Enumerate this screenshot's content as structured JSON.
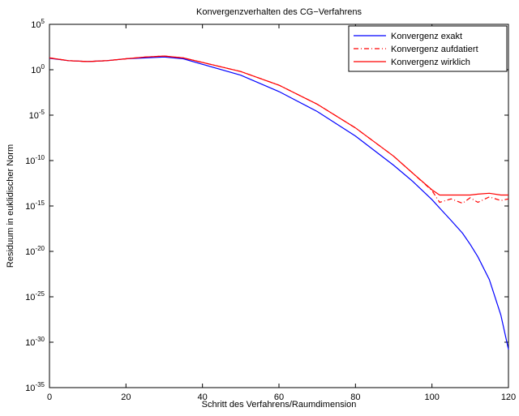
{
  "chart_data": {
    "type": "line",
    "title": "Konvergenzverhalten des CG−Verfahrens",
    "xlabel": "Schritt des Verfahrens/Raumdimension",
    "ylabel": "Residuum in euklidischer Norm",
    "x": [
      0,
      5,
      10,
      15,
      20,
      25,
      30,
      35,
      40,
      50,
      60,
      70,
      80,
      90,
      95,
      100,
      102,
      105,
      108,
      110,
      112,
      115,
      118,
      120
    ],
    "series": [
      {
        "name": "Konvergenz exakt",
        "color": "#0000ff",
        "style": "solid",
        "values": [
          18,
          10,
          7.9,
          10,
          16,
          20,
          25,
          16,
          4,
          0.25,
          0.004,
          2.5e-05,
          5e-08,
          3e-11,
          5e-13,
          5e-15,
          6e-16,
          2.5e-17,
          1e-18,
          6e-20,
          2.5e-21,
          8e-24,
          1e-27,
          1.6e-31
        ]
      },
      {
        "name": "Konvergenz aufdatiert",
        "color": "#ff0000",
        "style": "dashdot",
        "values": [
          20,
          10,
          7.9,
          10,
          16,
          25,
          32,
          20,
          6.3,
          0.63,
          0.02,
          0.00016,
          4e-07,
          3e-10,
          4e-12,
          5e-14,
          2.5e-15,
          6e-15,
          2e-15,
          8e-15,
          2.5e-15,
          1e-14,
          4e-15,
          6e-15
        ]
      },
      {
        "name": "Konvergenz wirklich",
        "color": "#ff0000",
        "style": "solid",
        "values": [
          20,
          10,
          7.9,
          10,
          16,
          25,
          32,
          20,
          6.3,
          0.63,
          0.02,
          0.00016,
          4e-07,
          3e-10,
          4e-12,
          6e-14,
          1.6e-14,
          1.6e-14,
          1.6e-14,
          1.6e-14,
          2e-14,
          2.5e-14,
          1.6e-14,
          1.6e-14
        ]
      }
    ],
    "xlim": [
      0,
      120
    ],
    "xticks": [
      0,
      20,
      40,
      60,
      80,
      100,
      120
    ],
    "ylim": [
      1e-35,
      100000.0
    ],
    "yscale": "log",
    "yticks": [
      {
        "value": 100000.0,
        "label": "10^5"
      },
      {
        "value": 1,
        "label": "10^0"
      },
      {
        "value": 1e-05,
        "label": "10^-5"
      },
      {
        "value": 1e-10,
        "label": "10^-10"
      },
      {
        "value": 1e-15,
        "label": "10^-15"
      },
      {
        "value": 1e-20,
        "label": "10^-20"
      },
      {
        "value": 1e-25,
        "label": "10^-25"
      },
      {
        "value": 1e-30,
        "label": "10^-30"
      },
      {
        "value": 1e-35,
        "label": "10^-35"
      }
    ],
    "legend": "upper right",
    "grid": false
  }
}
